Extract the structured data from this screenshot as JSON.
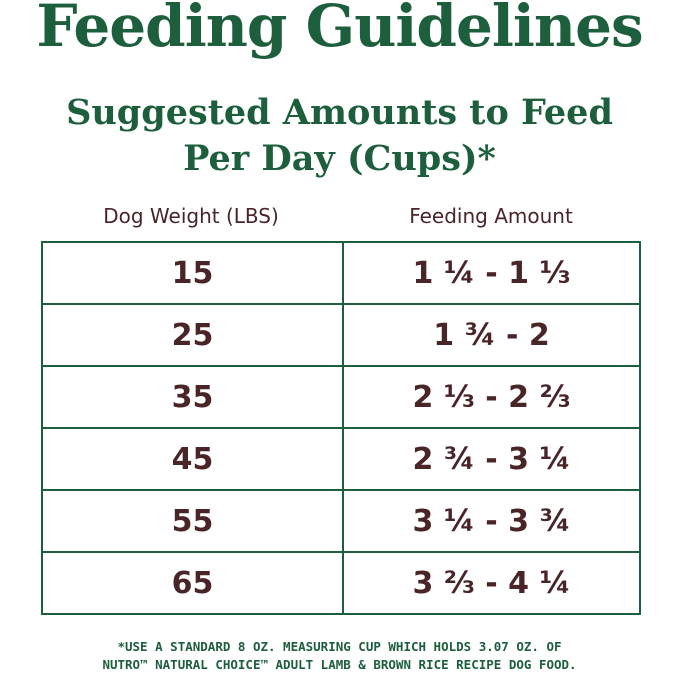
{
  "title": "Feeding Guidelines",
  "subtitle": [
    "Suggested Amounts to Feed",
    "Per Day (Cups)*"
  ],
  "table": {
    "headers": [
      "Dog Weight (LBS)",
      "Feeding Amount"
    ],
    "rows": [
      [
        "15",
        "1 ¼ - 1 ⅓"
      ],
      [
        "25",
        "1 ¾ - 2"
      ],
      [
        "35",
        "2 ⅓ - 2 ⅔"
      ],
      [
        "45",
        "2 ¾ - 3 ¼"
      ],
      [
        "55",
        "3 ¼ - 3 ¾"
      ],
      [
        "65",
        "3 ⅔ - 4 ¼"
      ]
    ]
  },
  "footnote": [
    "*USE A STANDARD 8 OZ. MEASURING CUP WHICH HOLDS 3.07 OZ. OF",
    "NUTRO™ NATURAL CHOICE™ ADULT LAMB & BROWN RICE RECIPE DOG FOOD."
  ],
  "colors": {
    "green": "#1d5e3d",
    "brown": "#4a2528"
  }
}
